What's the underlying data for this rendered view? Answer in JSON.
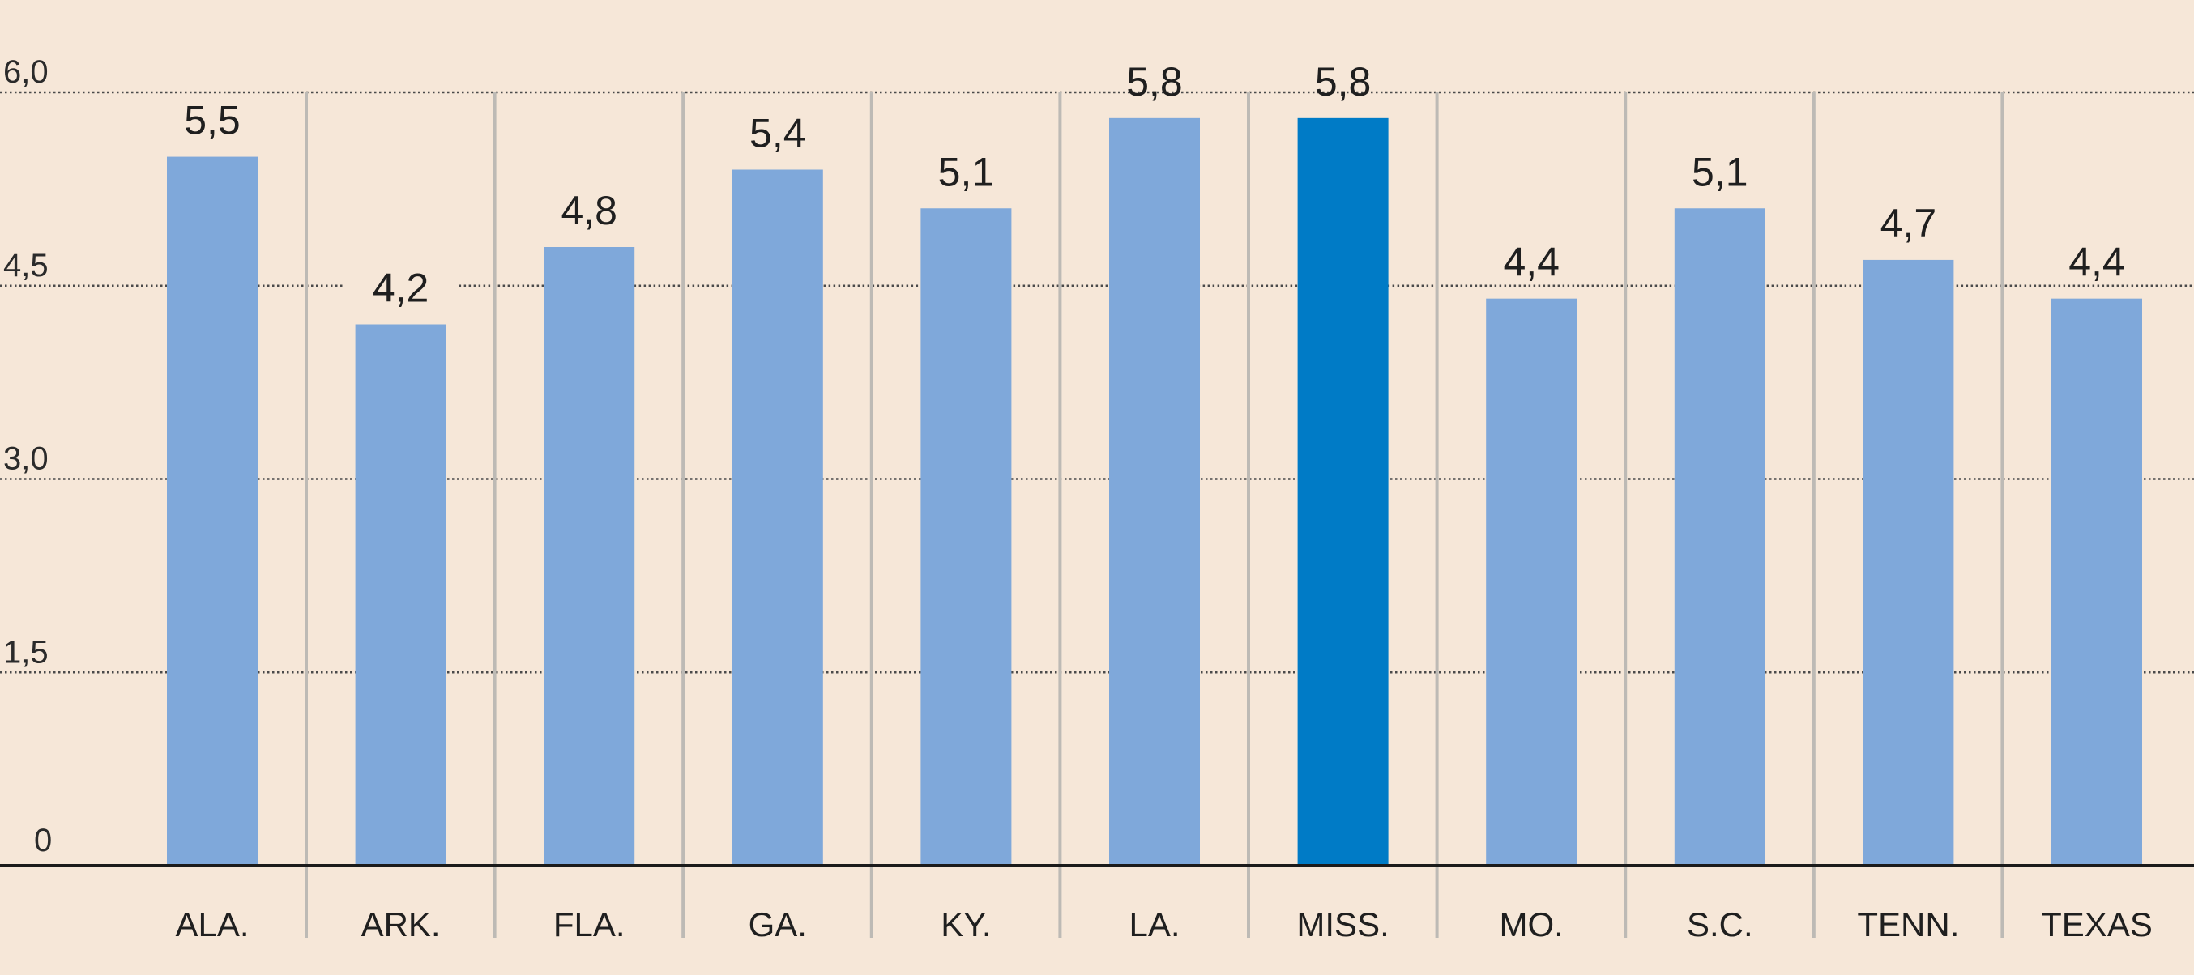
{
  "chart_data": {
    "type": "bar",
    "title": "",
    "xlabel": "",
    "ylabel": "",
    "categories": [
      "ALA.",
      "ARK.",
      "FLA.",
      "GA.",
      "KY.",
      "LA.",
      "MISS.",
      "MO.",
      "S.C.",
      "TENN.",
      "TEXAS"
    ],
    "values": [
      5.5,
      4.2,
      4.8,
      5.4,
      5.1,
      5.8,
      5.8,
      4.4,
      5.1,
      4.7,
      4.4
    ],
    "value_labels": [
      "5,5",
      "4,2",
      "4,8",
      "5,4",
      "5,1",
      "5,8",
      "5,8",
      "4,4",
      "5,1",
      "4,7",
      "4,4"
    ],
    "ylim": [
      0,
      6
    ],
    "y_ticks": [
      0,
      1.5,
      3,
      4.5,
      6
    ],
    "y_tick_labels": [
      "0",
      "1,5",
      "3,0",
      "4,5",
      "6,0"
    ],
    "highlight_category": "MISS.",
    "grid": true,
    "legend": "none",
    "colors": {
      "background": "#f6e7d8",
      "bar": "#7fa8da",
      "highlight": "#007bc6",
      "grid": "#4a4a4a",
      "separator": "#bdbab5",
      "baseline": "#1b1b1b",
      "text": "#1f1f1f"
    }
  }
}
